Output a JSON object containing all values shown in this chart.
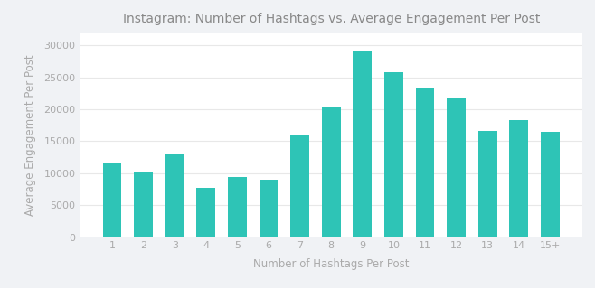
{
  "categories": [
    "1",
    "2",
    "3",
    "4",
    "5",
    "6",
    "7",
    "8",
    "9",
    "10",
    "11",
    "12",
    "13",
    "14",
    "15+"
  ],
  "values": [
    11700,
    10300,
    13000,
    7700,
    9400,
    9000,
    16100,
    20300,
    29000,
    25800,
    23300,
    21700,
    16600,
    18300,
    16500
  ],
  "bar_color": "#2EC4B6",
  "title": "Instagram: Number of Hashtags vs. Average Engagement Per Post",
  "xlabel": "Number of Hashtags Per Post",
  "ylabel": "Average Engagement Per Post",
  "ylim": [
    0,
    32000
  ],
  "yticks": [
    0,
    5000,
    10000,
    15000,
    20000,
    25000,
    30000
  ],
  "ytick_labels": [
    "0",
    "5000",
    "10000",
    "15000",
    "20000",
    "25000",
    "30000"
  ],
  "background_color": "#f0f2f5",
  "plot_background": "#ffffff",
  "title_fontsize": 10,
  "title_color": "#888888",
  "axis_label_fontsize": 8.5,
  "axis_label_color": "#aaaaaa",
  "tick_fontsize": 8,
  "tick_color": "#aaaaaa"
}
